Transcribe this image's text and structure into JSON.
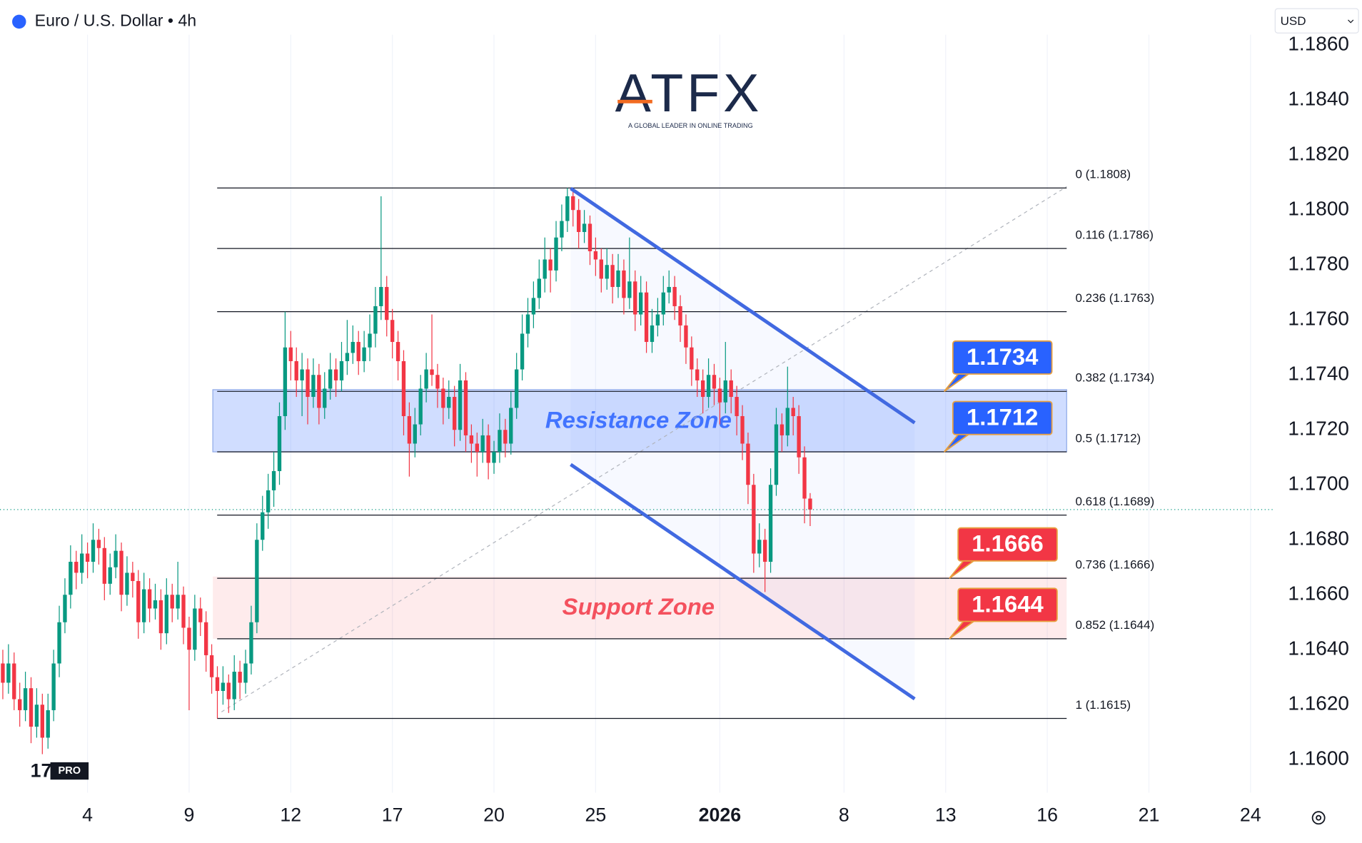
{
  "header": {
    "title": "Euro / U.S. Dollar • 4h",
    "currency": "USD",
    "logo": "ATFX",
    "tagline": "A GLOBAL LEADER IN ONLINE TRADING",
    "badge": "PRO"
  },
  "chart_data": {
    "type": "candlestick",
    "up_color": "#089981",
    "down_color": "#f23645",
    "grid": true,
    "xlim": [
      -15.5,
      209.9
    ],
    "xticks": [
      {
        "value": 0,
        "label": "4"
      },
      {
        "value": 18,
        "label": "9"
      },
      {
        "value": 36,
        "label": "12"
      },
      {
        "value": 54,
        "label": "17"
      },
      {
        "value": 72,
        "label": "20"
      },
      {
        "value": 90,
        "label": "25"
      },
      {
        "value": 112,
        "label": "2026"
      },
      {
        "value": 134,
        "label": "8"
      },
      {
        "value": 152,
        "label": "13"
      },
      {
        "value": 170,
        "label": "16"
      },
      {
        "value": 188,
        "label": "21"
      },
      {
        "value": 206,
        "label": "24"
      }
    ],
    "ylim": [
      1.1588,
      1.1864
    ],
    "yticks": [
      {
        "value": 1.186,
        "label": "1.1860"
      },
      {
        "value": 1.184,
        "label": "1.1840"
      },
      {
        "value": 1.182,
        "label": "1.1820"
      },
      {
        "value": 1.18,
        "label": "1.1800"
      },
      {
        "value": 1.178,
        "label": "1.1780"
      },
      {
        "value": 1.176,
        "label": "1.1760"
      },
      {
        "value": 1.174,
        "label": "1.1740"
      },
      {
        "value": 1.172,
        "label": "1.1720"
      },
      {
        "value": 1.17,
        "label": "1.1700"
      },
      {
        "value": 1.168,
        "label": "1.1680"
      },
      {
        "value": 1.166,
        "label": "1.1660"
      },
      {
        "value": 1.164,
        "label": "1.1640"
      },
      {
        "value": 1.162,
        "label": "1.1620"
      },
      {
        "value": 1.16,
        "label": "1.1600"
      }
    ],
    "x": [
      -15,
      -14,
      -13,
      -12,
      -11,
      -10,
      -9,
      -8,
      -7,
      -6,
      -5,
      -4,
      -3,
      -2,
      -1,
      0,
      1,
      2,
      3,
      4,
      5,
      6,
      7,
      8,
      9,
      10,
      11,
      12,
      13,
      14,
      15,
      16,
      17,
      18,
      19,
      20,
      21,
      22,
      23,
      24,
      25,
      26,
      27,
      28,
      29,
      30,
      31,
      32,
      33,
      34,
      35,
      36,
      37,
      38,
      39,
      40,
      41,
      42,
      43,
      44,
      45,
      46,
      47,
      48,
      49,
      50,
      51,
      52,
      53,
      54,
      55,
      56,
      57,
      58,
      59,
      60,
      61,
      62,
      63,
      64,
      65,
      66,
      67,
      68,
      69,
      70,
      71,
      72,
      73,
      74,
      75,
      76,
      77,
      78,
      79,
      80,
      81,
      82,
      83,
      84,
      85,
      86,
      87,
      88,
      89,
      90,
      91,
      92,
      93,
      94,
      95,
      96,
      97,
      98,
      99,
      100,
      101,
      102,
      103,
      104,
      105,
      106,
      107,
      108,
      109,
      110,
      111,
      112,
      113,
      114,
      115,
      116,
      117,
      118,
      119,
      120,
      121,
      122,
      123,
      124,
      125,
      126,
      127,
      128
    ],
    "candles": [
      [
        1.1635,
        1.164,
        1.1622,
        1.1628
      ],
      [
        1.1628,
        1.1642,
        1.1624,
        1.1635
      ],
      [
        1.1635,
        1.1639,
        1.1618,
        1.1622
      ],
      [
        1.1622,
        1.1628,
        1.1612,
        1.1618
      ],
      [
        1.1618,
        1.1632,
        1.1614,
        1.1626
      ],
      [
        1.1626,
        1.163,
        1.1606,
        1.1612
      ],
      [
        1.1612,
        1.1626,
        1.1608,
        1.162
      ],
      [
        1.162,
        1.1624,
        1.1602,
        1.1608
      ],
      [
        1.1608,
        1.1624,
        1.1604,
        1.1618
      ],
      [
        1.1618,
        1.164,
        1.1614,
        1.1635
      ],
      [
        1.1635,
        1.1656,
        1.163,
        1.165
      ],
      [
        1.165,
        1.1666,
        1.1646,
        1.166
      ],
      [
        1.166,
        1.1678,
        1.1655,
        1.1672
      ],
      [
        1.1672,
        1.1676,
        1.1662,
        1.1668
      ],
      [
        1.1668,
        1.1682,
        1.1664,
        1.1675
      ],
      [
        1.1675,
        1.1679,
        1.1666,
        1.1672
      ],
      [
        1.1672,
        1.1686,
        1.1668,
        1.168
      ],
      [
        1.168,
        1.1684,
        1.1671,
        1.1677
      ],
      [
        1.1677,
        1.1681,
        1.1658,
        1.1664
      ],
      [
        1.1664,
        1.1675,
        1.166,
        1.167
      ],
      [
        1.167,
        1.1682,
        1.1666,
        1.1676
      ],
      [
        1.1676,
        1.1679,
        1.1654,
        1.166
      ],
      [
        1.166,
        1.1674,
        1.1656,
        1.1668
      ],
      [
        1.1668,
        1.1672,
        1.1659,
        1.1665
      ],
      [
        1.1665,
        1.1669,
        1.1644,
        1.165
      ],
      [
        1.165,
        1.1668,
        1.1646,
        1.1662
      ],
      [
        1.1662,
        1.1666,
        1.165,
        1.1655
      ],
      [
        1.1655,
        1.1664,
        1.1651,
        1.1658
      ],
      [
        1.1658,
        1.1662,
        1.164,
        1.1646
      ],
      [
        1.1646,
        1.1666,
        1.1642,
        1.166
      ],
      [
        1.166,
        1.1664,
        1.165,
        1.1655
      ],
      [
        1.1655,
        1.1672,
        1.1651,
        1.166
      ],
      [
        1.166,
        1.1663,
        1.1642,
        1.1648
      ],
      [
        1.1648,
        1.1652,
        1.1618,
        1.164
      ],
      [
        1.164,
        1.166,
        1.1636,
        1.1655
      ],
      [
        1.1655,
        1.1659,
        1.1645,
        1.165
      ],
      [
        1.165,
        1.1654,
        1.1632,
        1.1638
      ],
      [
        1.1638,
        1.1642,
        1.1624,
        1.163
      ],
      [
        1.163,
        1.1634,
        1.1615,
        1.1625
      ],
      [
        1.1625,
        1.1634,
        1.162,
        1.1628
      ],
      [
        1.1628,
        1.1631,
        1.1617,
        1.1622
      ],
      [
        1.1622,
        1.1638,
        1.1618,
        1.1632
      ],
      [
        1.1632,
        1.1636,
        1.1622,
        1.1628
      ],
      [
        1.1628,
        1.164,
        1.1624,
        1.1635
      ],
      [
        1.1635,
        1.1656,
        1.1631,
        1.165
      ],
      [
        1.165,
        1.1686,
        1.1646,
        1.168
      ],
      [
        1.168,
        1.1696,
        1.1676,
        1.169
      ],
      [
        1.169,
        1.1704,
        1.1684,
        1.1698
      ],
      [
        1.1698,
        1.1712,
        1.1692,
        1.1705
      ],
      [
        1.1705,
        1.173,
        1.17,
        1.1725
      ],
      [
        1.1725,
        1.1763,
        1.172,
        1.175
      ],
      [
        1.175,
        1.1756,
        1.1738,
        1.1745
      ],
      [
        1.1745,
        1.175,
        1.1732,
        1.1738
      ],
      [
        1.1738,
        1.1748,
        1.1725,
        1.1742
      ],
      [
        1.1742,
        1.1746,
        1.1722,
        1.1732
      ],
      [
        1.1732,
        1.1746,
        1.1728,
        1.174
      ],
      [
        1.174,
        1.1744,
        1.1722,
        1.1728
      ],
      [
        1.1728,
        1.1741,
        1.1724,
        1.1735
      ],
      [
        1.1735,
        1.1748,
        1.1731,
        1.1742
      ],
      [
        1.1742,
        1.1746,
        1.1732,
        1.1738
      ],
      [
        1.1738,
        1.1752,
        1.1734,
        1.1745
      ],
      [
        1.1745,
        1.176,
        1.174,
        1.1748
      ],
      [
        1.1748,
        1.1758,
        1.1744,
        1.1752
      ],
      [
        1.1752,
        1.1756,
        1.174,
        1.1745
      ],
      [
        1.1745,
        1.1756,
        1.1741,
        1.175
      ],
      [
        1.175,
        1.1762,
        1.1745,
        1.1755
      ],
      [
        1.1755,
        1.1772,
        1.175,
        1.1765
      ],
      [
        1.1765,
        1.1805,
        1.176,
        1.1772
      ],
      [
        1.1772,
        1.1776,
        1.1754,
        1.176
      ],
      [
        1.176,
        1.1764,
        1.1746,
        1.1752
      ],
      [
        1.1752,
        1.1756,
        1.1738,
        1.1745
      ],
      [
        1.1745,
        1.1749,
        1.1718,
        1.1725
      ],
      [
        1.1725,
        1.173,
        1.1703,
        1.1715
      ],
      [
        1.1715,
        1.1728,
        1.171,
        1.1722
      ],
      [
        1.1722,
        1.174,
        1.1718,
        1.1735
      ],
      [
        1.1735,
        1.1748,
        1.173,
        1.1742
      ],
      [
        1.1742,
        1.1762,
        1.1736,
        1.174
      ],
      [
        1.174,
        1.1744,
        1.1728,
        1.1735
      ],
      [
        1.1735,
        1.1739,
        1.1722,
        1.1728
      ],
      [
        1.1728,
        1.1738,
        1.1724,
        1.1732
      ],
      [
        1.1732,
        1.1736,
        1.1714,
        1.172
      ],
      [
        1.172,
        1.1744,
        1.1716,
        1.1738
      ],
      [
        1.1738,
        1.1741,
        1.1712,
        1.1718
      ],
      [
        1.1718,
        1.1722,
        1.1708,
        1.1715
      ],
      [
        1.1715,
        1.1719,
        1.1703,
        1.1712
      ],
      [
        1.1712,
        1.1724,
        1.1708,
        1.1718
      ],
      [
        1.1718,
        1.1722,
        1.1702,
        1.1708
      ],
      [
        1.1708,
        1.1716,
        1.1704,
        1.1712
      ],
      [
        1.1712,
        1.1726,
        1.1708,
        1.172
      ],
      [
        1.172,
        1.1724,
        1.171,
        1.1715
      ],
      [
        1.1715,
        1.1734,
        1.1711,
        1.1728
      ],
      [
        1.1728,
        1.1748,
        1.1724,
        1.1742
      ],
      [
        1.1742,
        1.1762,
        1.1738,
        1.1755
      ],
      [
        1.1755,
        1.1768,
        1.175,
        1.1762
      ],
      [
        1.1762,
        1.1774,
        1.1757,
        1.1768
      ],
      [
        1.1768,
        1.1782,
        1.1764,
        1.1775
      ],
      [
        1.1775,
        1.179,
        1.177,
        1.1782
      ],
      [
        1.1782,
        1.1786,
        1.177,
        1.1778
      ],
      [
        1.1778,
        1.1796,
        1.1774,
        1.179
      ],
      [
        1.179,
        1.1802,
        1.1785,
        1.1796
      ],
      [
        1.1796,
        1.1808,
        1.1792,
        1.1805
      ],
      [
        1.1805,
        1.1808,
        1.1794,
        1.18
      ],
      [
        1.18,
        1.1804,
        1.1786,
        1.1792
      ],
      [
        1.1792,
        1.18,
        1.1788,
        1.1795
      ],
      [
        1.1795,
        1.1798,
        1.178,
        1.1785
      ],
      [
        1.1785,
        1.179,
        1.1776,
        1.1782
      ],
      [
        1.1782,
        1.1786,
        1.177,
        1.1775
      ],
      [
        1.1775,
        1.1786,
        1.1771,
        1.178
      ],
      [
        1.178,
        1.1784,
        1.1766,
        1.1772
      ],
      [
        1.1772,
        1.1784,
        1.1768,
        1.1778
      ],
      [
        1.1778,
        1.1782,
        1.1762,
        1.1768
      ],
      [
        1.1768,
        1.179,
        1.1764,
        1.1774
      ],
      [
        1.1774,
        1.1778,
        1.1756,
        1.1762
      ],
      [
        1.1762,
        1.1776,
        1.1758,
        1.177
      ],
      [
        1.177,
        1.1774,
        1.1748,
        1.1752
      ],
      [
        1.1752,
        1.1764,
        1.1748,
        1.1758
      ],
      [
        1.1758,
        1.1768,
        1.1754,
        1.1762
      ],
      [
        1.1762,
        1.1776,
        1.1758,
        1.177
      ],
      [
        1.177,
        1.1778,
        1.1766,
        1.1772
      ],
      [
        1.1772,
        1.1776,
        1.176,
        1.1765
      ],
      [
        1.1765,
        1.1769,
        1.1752,
        1.1758
      ],
      [
        1.1758,
        1.1762,
        1.1744,
        1.175
      ],
      [
        1.175,
        1.1754,
        1.1736,
        1.1742
      ],
      [
        1.1742,
        1.1746,
        1.1732,
        1.1738
      ],
      [
        1.1738,
        1.1742,
        1.1726,
        1.1732
      ],
      [
        1.1732,
        1.1746,
        1.1728,
        1.174
      ],
      [
        1.174,
        1.1744,
        1.1729,
        1.1735
      ],
      [
        1.1735,
        1.1739,
        1.1722,
        1.173
      ],
      [
        1.173,
        1.1752,
        1.1726,
        1.1738
      ],
      [
        1.1738,
        1.1742,
        1.1726,
        1.1732
      ],
      [
        1.1732,
        1.1736,
        1.1718,
        1.1725
      ],
      [
        1.1725,
        1.1729,
        1.1709,
        1.1715
      ],
      [
        1.1715,
        1.1719,
        1.1693,
        1.17
      ],
      [
        1.17,
        1.1704,
        1.1668,
        1.1675
      ],
      [
        1.1675,
        1.1686,
        1.167,
        1.168
      ],
      [
        1.168,
        1.1684,
        1.1661,
        1.1672
      ],
      [
        1.1672,
        1.1706,
        1.1668,
        1.17
      ],
      [
        1.17,
        1.1728,
        1.1696,
        1.1722
      ],
      [
        1.1722,
        1.1726,
        1.1712,
        1.1718
      ],
      [
        1.1718,
        1.1743,
        1.1714,
        1.1728
      ],
      [
        1.1728,
        1.1732,
        1.1718,
        1.1725
      ],
      [
        1.1725,
        1.1729,
        1.1704,
        1.171
      ],
      [
        1.171,
        1.1714,
        1.1686,
        1.1695
      ],
      [
        1.1695,
        1.1697,
        1.1685,
        1.1691
      ]
    ],
    "fib_levels": [
      {
        "label": "0 (1.1808)",
        "value": 1.1808
      },
      {
        "label": "0.116 (1.1786)",
        "value": 1.1786
      },
      {
        "label": "0.236 (1.1763)",
        "value": 1.1763
      },
      {
        "label": "0.382 (1.1734)",
        "value": 1.1734
      },
      {
        "label": "0.5 (1.1712)",
        "value": 1.1712
      },
      {
        "label": "0.618 (1.1689)",
        "value": 1.1689
      },
      {
        "label": "0.736 (1.1666)",
        "value": 1.1666
      },
      {
        "label": "0.852 (1.1644)",
        "value": 1.1644
      },
      {
        "label": "1 (1.1615)",
        "value": 1.1615
      }
    ],
    "zones": [
      {
        "label": "Resistance Zone",
        "top": 1.1734,
        "bottom": 1.1712,
        "color": "#2962ff"
      },
      {
        "label": "Support Zone",
        "top": 1.1666,
        "bottom": 1.1644,
        "color": "#f23645"
      }
    ],
    "callouts": [
      {
        "value": 1.1734,
        "color": "#2962ff"
      },
      {
        "value": 1.1712,
        "color": "#2962ff"
      },
      {
        "value": 1.1666,
        "color": "#f23645"
      },
      {
        "value": 1.1644,
        "color": "#f23645"
      }
    ]
  }
}
